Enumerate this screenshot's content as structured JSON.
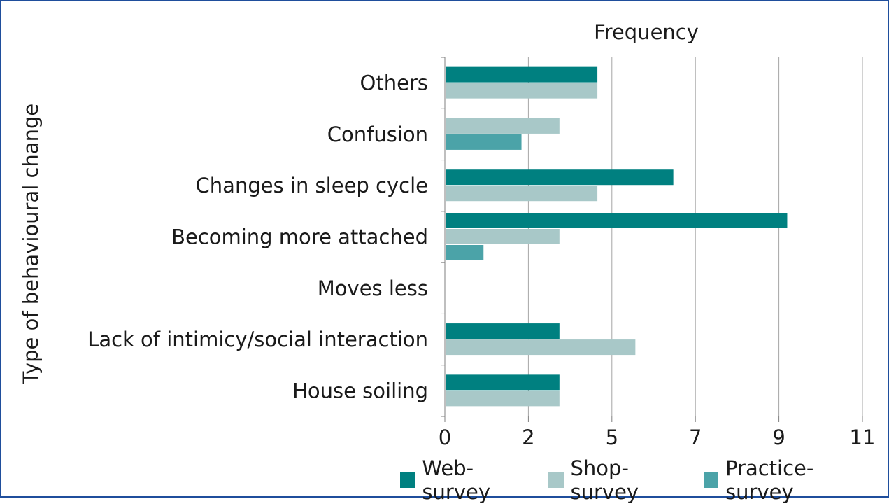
{
  "chart_data": {
    "type": "bar",
    "orientation": "horizontal",
    "title": "Frequency",
    "xlabel": "Frequency",
    "ylabel": "Type of behavioural change",
    "categories": [
      "Others",
      "Confusion",
      "Changes in sleep cycle",
      "Becoming more attached",
      "Moves less",
      "Lack of intimicy/social interaction",
      "House soiling"
    ],
    "series": [
      {
        "name": "Web-survey",
        "color": "#008080",
        "values": [
          4,
          0,
          6,
          9,
          0,
          3,
          3
        ]
      },
      {
        "name": "Shop-survey",
        "color": "#a8c8c8",
        "values": [
          4,
          3,
          4,
          3,
          0,
          5,
          3
        ]
      },
      {
        "name": "Practice-survey",
        "color": "#4ba3a8",
        "values": [
          0,
          2,
          0,
          1,
          0,
          0,
          0
        ]
      }
    ],
    "x_tick_labels": [
      "0",
      "2",
      "5",
      "7",
      "9",
      "11"
    ],
    "xlim": [
      0,
      11
    ],
    "grid": true,
    "legend_position": "bottom"
  }
}
